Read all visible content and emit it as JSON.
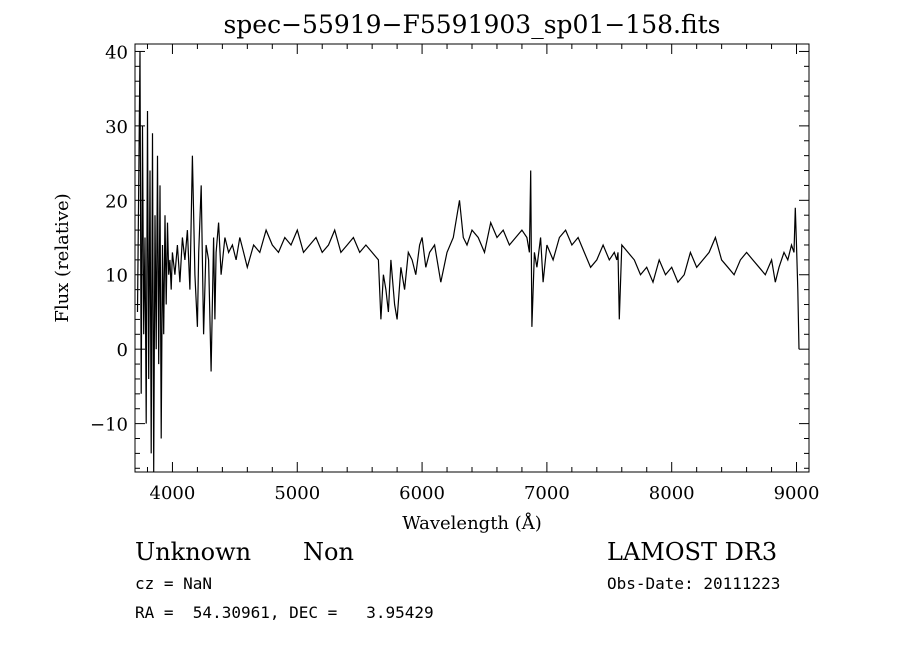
{
  "chart_data": {
    "type": "line",
    "title": "spec−55919−F5591903_sp01−158.fits",
    "xlabel": "Wavelength (Å)",
    "ylabel": "Flux (relative)",
    "xlim": [
      3700,
      9100
    ],
    "ylim": [
      -16.5,
      41
    ],
    "xticks": [
      4000,
      5000,
      6000,
      7000,
      8000,
      9000
    ],
    "yticks": [
      -10,
      0,
      10,
      20,
      30,
      40
    ],
    "ytick_labels": [
      "−10",
      "0",
      "10",
      "20",
      "30",
      "40"
    ],
    "grid": false,
    "series": [
      {
        "color": "#000000",
        "x": [
          3720,
          3740,
          3750,
          3760,
          3770,
          3780,
          3790,
          3800,
          3810,
          3820,
          3830,
          3840,
          3850,
          3860,
          3870,
          3880,
          3890,
          3900,
          3910,
          3920,
          3930,
          3940,
          3950,
          3960,
          3970,
          3980,
          3990,
          4000,
          4020,
          4040,
          4060,
          4080,
          4100,
          4120,
          4140,
          4160,
          4180,
          4200,
          4210,
          4230,
          4250,
          4270,
          4290,
          4310,
          4330,
          4340,
          4350,
          4370,
          4390,
          4420,
          4450,
          4480,
          4510,
          4540,
          4570,
          4600,
          4650,
          4700,
          4750,
          4800,
          4850,
          4900,
          4950,
          5000,
          5050,
          5100,
          5150,
          5200,
          5250,
          5300,
          5350,
          5400,
          5450,
          5500,
          5550,
          5600,
          5650,
          5670,
          5690,
          5710,
          5730,
          5750,
          5780,
          5800,
          5830,
          5860,
          5890,
          5920,
          5950,
          5980,
          6000,
          6030,
          6060,
          6100,
          6150,
          6200,
          6250,
          6300,
          6330,
          6360,
          6400,
          6450,
          6500,
          6550,
          6600,
          6650,
          6700,
          6750,
          6800,
          6840,
          6860,
          6870,
          6880,
          6900,
          6920,
          6950,
          6970,
          7000,
          7050,
          7100,
          7150,
          7200,
          7250,
          7300,
          7350,
          7400,
          7450,
          7500,
          7540,
          7560,
          7570,
          7580,
          7600,
          7650,
          7700,
          7750,
          7800,
          7850,
          7900,
          7950,
          8000,
          8050,
          8100,
          8150,
          8200,
          8250,
          8300,
          8350,
          8400,
          8450,
          8500,
          8550,
          8600,
          8650,
          8700,
          8750,
          8800,
          8830,
          8860,
          8900,
          8930,
          8960,
          8980,
          8990,
          9000,
          9010,
          9020
        ],
        "y": [
          5,
          40,
          -6,
          30,
          2,
          15,
          -10,
          32,
          -4,
          24,
          -14,
          29,
          -17,
          18,
          0,
          26,
          -2,
          22,
          -12,
          14,
          2,
          18,
          6,
          17,
          10,
          12,
          8,
          13,
          10,
          14,
          9,
          15,
          12,
          16,
          8,
          26,
          10,
          3,
          13,
          22,
          2,
          14,
          12,
          -3,
          15,
          4,
          13,
          17,
          10,
          15,
          13,
          14,
          12,
          15,
          13,
          11,
          14,
          13,
          16,
          14,
          13,
          15,
          14,
          16,
          13,
          14,
          15,
          13,
          14,
          16,
          13,
          14,
          15,
          13,
          14,
          13,
          12,
          4,
          10,
          8,
          5,
          12,
          6,
          4,
          11,
          8,
          13,
          12,
          10,
          14,
          15,
          11,
          13,
          14,
          9,
          13,
          15,
          20,
          15,
          14,
          16,
          15,
          13,
          17,
          15,
          16,
          14,
          15,
          16,
          15,
          13,
          24,
          3,
          13,
          11,
          15,
          9,
          14,
          12,
          15,
          16,
          14,
          15,
          13,
          11,
          12,
          14,
          12,
          13,
          12,
          13,
          4,
          14,
          13,
          12,
          10,
          11,
          9,
          12,
          10,
          11,
          9,
          10,
          13,
          11,
          12,
          13,
          15,
          12,
          11,
          10,
          12,
          13,
          12,
          11,
          10,
          12,
          9,
          11,
          13,
          12,
          14,
          13,
          19,
          14,
          8,
          0
        ]
      }
    ]
  },
  "info": {
    "class": "Unknown",
    "subclass": "Non",
    "survey": "LAMOST DR3",
    "redshift": "cz = NaN",
    "obs_date": "Obs-Date: 20111223",
    "coords": "RA =  54.30961, DEC =   3.95429"
  }
}
